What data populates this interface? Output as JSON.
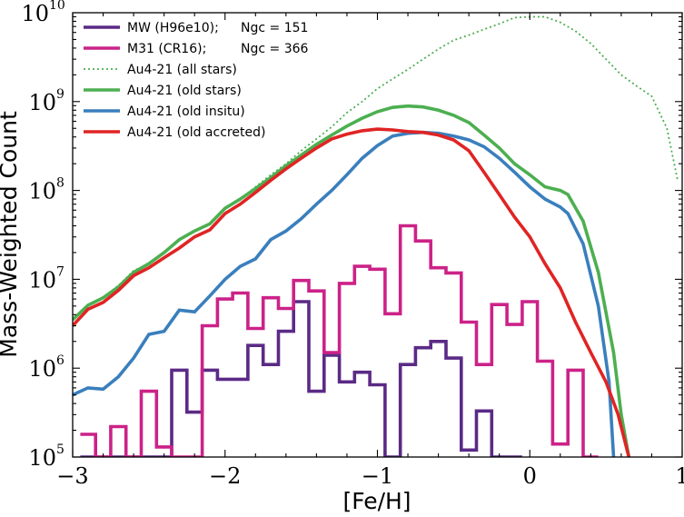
{
  "chart_data": {
    "type": "line",
    "title": "",
    "xlabel": "[Fe/H]",
    "ylabel": "Mass-Weighted Count",
    "xlim": [
      -3,
      1
    ],
    "ylim": [
      100000,
      10000000000
    ],
    "yscale": "log",
    "x_ticks": [
      -3,
      -2,
      -1,
      0,
      1
    ],
    "x_tick_labels": [
      "−3",
      "−2",
      "−1",
      "0",
      "1"
    ],
    "y_ticks": [
      5,
      6,
      7,
      8,
      9,
      10
    ],
    "legend_position": "top-left",
    "series": [
      {
        "name": "MW (H96e10);",
        "ngc_label": "Ngc = 151",
        "style": "step",
        "color": "#5b2a86",
        "x": [
          -2.9,
          -2.8,
          -2.7,
          -2.6,
          -2.5,
          -2.4,
          -2.3,
          -2.2,
          -2.1,
          -2.0,
          -1.9,
          -1.8,
          -1.7,
          -1.6,
          -1.5,
          -1.4,
          -1.3,
          -1.2,
          -1.1,
          -1.0,
          -0.9,
          -0.8,
          -0.7,
          -0.6,
          -0.5,
          -0.4,
          -0.3,
          -0.2,
          -0.1
        ],
        "y": [
          100000,
          100000,
          100000,
          100000,
          100000,
          100000,
          950000,
          320000,
          950000,
          750000,
          750000,
          1800000,
          1100000,
          2600000,
          5600000,
          550000,
          1400000,
          700000,
          900000,
          650000,
          100000,
          1100000,
          1700000,
          2000000,
          1300000,
          120000,
          330000,
          100000,
          100000
        ]
      },
      {
        "name": "M31 (CR16);",
        "ngc_label": "Ngc = 366",
        "style": "step",
        "color": "#cc2288",
        "x": [
          -2.9,
          -2.8,
          -2.7,
          -2.6,
          -2.5,
          -2.4,
          -2.3,
          -2.2,
          -2.1,
          -2.0,
          -1.9,
          -1.8,
          -1.7,
          -1.6,
          -1.5,
          -1.4,
          -1.3,
          -1.2,
          -1.1,
          -1.0,
          -0.9,
          -0.8,
          -0.7,
          -0.6,
          -0.5,
          -0.4,
          -0.3,
          -0.2,
          -0.1,
          0.0,
          0.1,
          0.2,
          0.3,
          0.4
        ],
        "y": [
          180000,
          100000,
          220000,
          100000,
          550000,
          130000,
          100000,
          100000,
          3000000,
          6000000,
          7000000,
          2800000,
          6200000,
          4700000,
          9700000,
          7400000,
          1500000,
          9000000,
          14000000,
          13000000,
          4100000,
          40000000,
          27000000,
          13500000,
          11800000,
          3300000,
          1100000,
          5200000,
          3100000,
          5600000,
          1200000,
          140000,
          950000,
          100000
        ]
      },
      {
        "name": "Au4-21 (all stars)",
        "style": "dotted",
        "color": "#4caf50",
        "x": [
          -3.0,
          -2.9,
          -2.8,
          -2.7,
          -2.6,
          -2.5,
          -2.4,
          -2.3,
          -2.2,
          -2.1,
          -2.0,
          -1.9,
          -1.8,
          -1.7,
          -1.6,
          -1.5,
          -1.4,
          -1.3,
          -1.2,
          -1.1,
          -1.0,
          -0.9,
          -0.8,
          -0.7,
          -0.6,
          -0.5,
          -0.4,
          -0.3,
          -0.2,
          -0.1,
          0.0,
          0.1,
          0.2,
          0.3,
          0.4,
          0.5,
          0.6,
          0.7,
          0.8,
          0.9,
          0.97
        ],
        "y": [
          3500000,
          5200000,
          6300000,
          8500000,
          12500000,
          15000000,
          20000000,
          28000000,
          35000000,
          42000000,
          63000000,
          80000000,
          110000000,
          150000000,
          200000000,
          280000000,
          380000000,
          520000000,
          750000000,
          1000000000,
          1400000000,
          1800000000,
          2300000000,
          3000000000,
          3900000000,
          4900000000,
          5600000000,
          6500000000,
          7500000000,
          8800000000,
          9000000000,
          9000000000,
          7800000000,
          6200000000,
          4500000000,
          3000000000,
          2000000000,
          1500000000,
          1150000000,
          500000000,
          130000000
        ]
      },
      {
        "name": "Au4-21 (old stars)",
        "style": "solid",
        "color": "#4caf50",
        "x": [
          -3.0,
          -2.9,
          -2.8,
          -2.7,
          -2.6,
          -2.5,
          -2.4,
          -2.3,
          -2.2,
          -2.1,
          -2.0,
          -1.9,
          -1.8,
          -1.7,
          -1.6,
          -1.5,
          -1.4,
          -1.3,
          -1.2,
          -1.1,
          -1.0,
          -0.9,
          -0.8,
          -0.7,
          -0.6,
          -0.5,
          -0.4,
          -0.3,
          -0.2,
          -0.1,
          0.0,
          0.1,
          0.2,
          0.25,
          0.35,
          0.45,
          0.55,
          0.6,
          0.65
        ],
        "y": [
          3500000,
          5100000,
          6200000,
          8200000,
          12000000,
          15000000,
          20000000,
          28000000,
          35000000,
          42000000,
          63000000,
          80000000,
          105000000,
          140000000,
          190000000,
          250000000,
          330000000,
          420000000,
          530000000,
          650000000,
          770000000,
          860000000,
          890000000,
          870000000,
          800000000,
          700000000,
          580000000,
          420000000,
          300000000,
          200000000,
          150000000,
          110000000,
          100000000,
          90000000,
          45000000,
          12000000,
          1500000,
          300000,
          100000
        ]
      },
      {
        "name": "Au4-21 (old insitu)",
        "style": "solid",
        "color": "#3a7fbd",
        "x": [
          -3.0,
          -2.9,
          -2.8,
          -2.7,
          -2.6,
          -2.5,
          -2.4,
          -2.3,
          -2.2,
          -2.1,
          -2.0,
          -1.9,
          -1.8,
          -1.7,
          -1.6,
          -1.5,
          -1.4,
          -1.3,
          -1.2,
          -1.1,
          -1.0,
          -0.9,
          -0.8,
          -0.7,
          -0.6,
          -0.5,
          -0.4,
          -0.3,
          -0.2,
          -0.1,
          0.0,
          0.1,
          0.2,
          0.25,
          0.35,
          0.45,
          0.52,
          0.55
        ],
        "y": [
          500000,
          600000,
          580000,
          800000,
          1300000,
          2400000,
          2600000,
          4500000,
          4300000,
          6500000,
          10000000,
          14000000,
          17000000,
          28000000,
          35000000,
          48000000,
          70000000,
          100000000,
          150000000,
          230000000,
          320000000,
          410000000,
          440000000,
          450000000,
          440000000,
          410000000,
          370000000,
          310000000,
          230000000,
          160000000,
          110000000,
          80000000,
          65000000,
          55000000,
          25000000,
          5000000,
          700000,
          100000
        ]
      },
      {
        "name": "Au4-21 (old accreted)",
        "style": "solid",
        "color": "#e02424",
        "x": [
          -3.0,
          -2.9,
          -2.8,
          -2.7,
          -2.6,
          -2.5,
          -2.4,
          -2.3,
          -2.2,
          -2.1,
          -2.0,
          -1.9,
          -1.8,
          -1.7,
          -1.6,
          -1.5,
          -1.4,
          -1.3,
          -1.2,
          -1.1,
          -1.0,
          -0.9,
          -0.8,
          -0.7,
          -0.6,
          -0.5,
          -0.4,
          -0.3,
          -0.2,
          -0.1,
          0.0,
          0.1,
          0.2,
          0.3,
          0.4,
          0.5,
          0.58,
          0.65
        ],
        "y": [
          3000000,
          4600000,
          5500000,
          7500000,
          11000000,
          13500000,
          17500000,
          22500000,
          30000000,
          36000000,
          55000000,
          70000000,
          95000000,
          130000000,
          175000000,
          230000000,
          300000000,
          380000000,
          430000000,
          470000000,
          490000000,
          480000000,
          460000000,
          450000000,
          420000000,
          370000000,
          280000000,
          160000000,
          90000000,
          50000000,
          30000000,
          15000000,
          8000000,
          3300000,
          1500000,
          700000,
          300000,
          100000
        ]
      }
    ]
  }
}
